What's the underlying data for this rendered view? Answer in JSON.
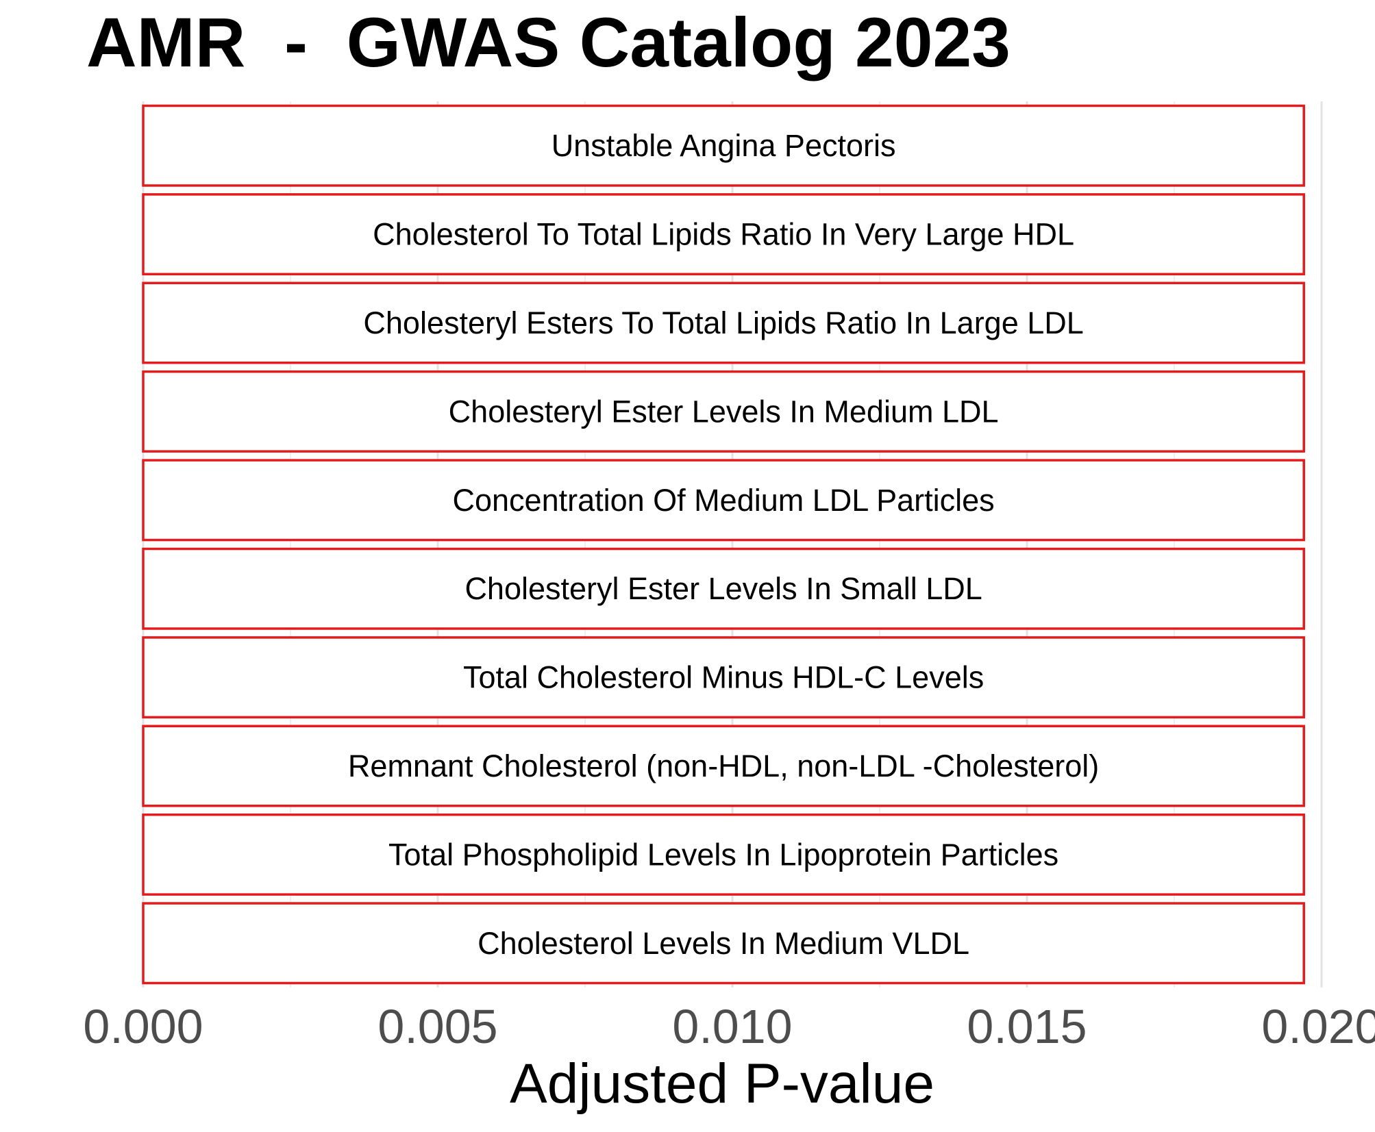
{
  "chart_data": {
    "type": "bar",
    "orientation": "horizontal",
    "title": "AMR  -  GWAS Catalog 2023",
    "xlabel": "Adjusted P-value",
    "ylabel": "",
    "xlim": [
      0,
      0.02
    ],
    "x_ticks": [
      {
        "value": 0.0,
        "label": "0.000"
      },
      {
        "value": 0.005,
        "label": "0.005"
      },
      {
        "value": 0.01,
        "label": "0.010"
      },
      {
        "value": 0.015,
        "label": "0.015"
      },
      {
        "value": 0.02,
        "label": "0.020"
      }
    ],
    "grid": true,
    "bar_border_color": "#e41a1c",
    "bar_fill_color": "#ffffff",
    "categories": [
      "Unstable Angina Pectoris",
      "Cholesterol To Total Lipids Ratio In Very Large HDL",
      "Cholesteryl Esters To Total Lipids Ratio In Large LDL",
      "Cholesteryl Ester Levels In Medium LDL",
      "Concentration Of Medium LDL Particles",
      "Cholesteryl Ester Levels In Small LDL",
      "Total Cholesterol Minus HDL-C Levels",
      "Remnant Cholesterol (non-HDL, non-LDL -Cholesterol)",
      "Total Phospholipid Levels In Lipoprotein Particles",
      "Cholesterol Levels In Medium VLDL"
    ],
    "values": [
      0.0197,
      0.0197,
      0.0197,
      0.0197,
      0.0197,
      0.0197,
      0.0197,
      0.0197,
      0.0197,
      0.0197
    ]
  }
}
